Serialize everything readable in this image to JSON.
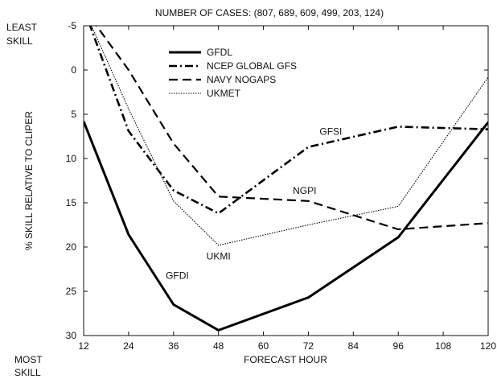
{
  "chart_data": {
    "type": "line",
    "title": "NUMBER OF CASES: (807, 689, 609, 499, 203, 124)",
    "xlabel": "FORECAST HOUR",
    "ylabel": "% SKILL RELATIVE TO CLIPER",
    "xlim": [
      12,
      120
    ],
    "ylim": [
      30,
      -5
    ],
    "y_inverted": true,
    "grid": false,
    "legend_position": "upper-left",
    "x_ticks": [
      12,
      24,
      36,
      48,
      60,
      72,
      84,
      96,
      108,
      120
    ],
    "y_ticks": [
      -5,
      0,
      5,
      10,
      15,
      20,
      25,
      30
    ],
    "corner_labels": {
      "top_line1": "LEAST",
      "top_line2": "SKILL",
      "bottom_line1": "MOST",
      "bottom_line2": "SKILL"
    },
    "series": [
      {
        "name": "GFDL",
        "style": "solid",
        "color": "#000000",
        "x": [
          12,
          24,
          36,
          48,
          72,
          96,
          120
        ],
        "y": [
          5.8,
          18.6,
          26.5,
          29.4,
          25.7,
          18.9,
          5.9
        ]
      },
      {
        "name": "NCEP GLOBAL GFS",
        "style": "dash-dot",
        "color": "#000000",
        "x": [
          12,
          24,
          36,
          48,
          72,
          96,
          120
        ],
        "y": [
          -7,
          6.9,
          13.6,
          16.2,
          8.7,
          6.4,
          6.7
        ]
      },
      {
        "name": "NAVY NOGAPS",
        "style": "dashed",
        "color": "#000000",
        "x": [
          12,
          24,
          36,
          48,
          72,
          96,
          120
        ],
        "y": [
          -7,
          0,
          8.3,
          14.3,
          14.8,
          18,
          17.3
        ]
      },
      {
        "name": "UKMET",
        "style": "dotted",
        "color": "#000000",
        "x": [
          12,
          24,
          36,
          48,
          72,
          96,
          120
        ],
        "y": [
          -7,
          4.4,
          14.8,
          19.8,
          17.5,
          15.4,
          0.8
        ]
      }
    ],
    "annotations": [
      {
        "text": "GFSI",
        "x": 78,
        "y": 7.3
      },
      {
        "text": "NGPI",
        "x": 71,
        "y": 14
      },
      {
        "text": "UKMI",
        "x": 48,
        "y": 21.4
      },
      {
        "text": "GFDI",
        "x": 37,
        "y": 23.6
      }
    ]
  }
}
